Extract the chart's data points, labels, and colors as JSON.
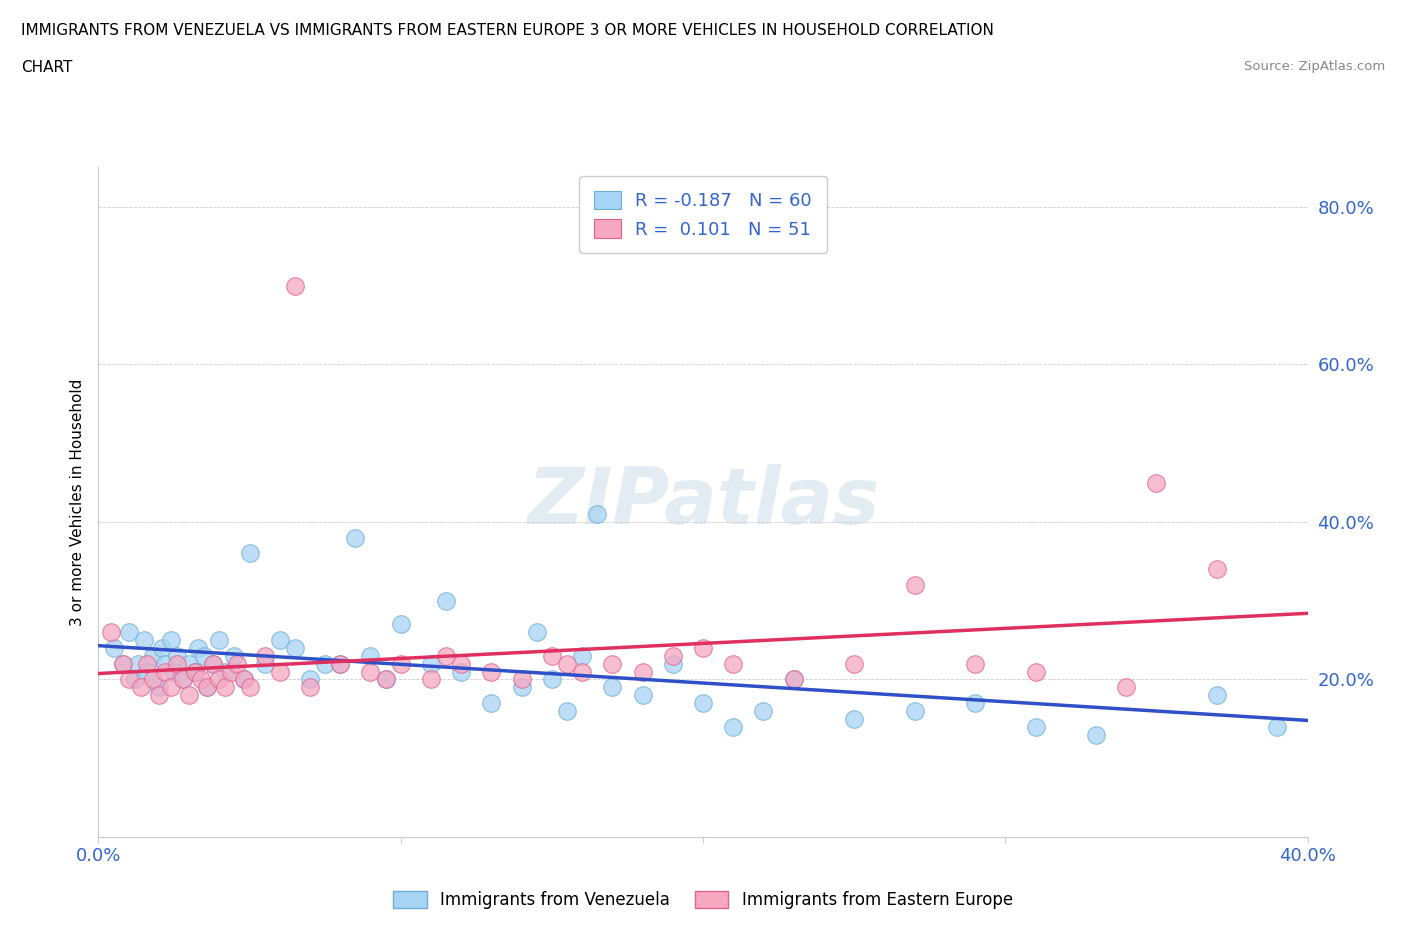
{
  "title_line1": "IMMIGRANTS FROM VENEZUELA VS IMMIGRANTS FROM EASTERN EUROPE 3 OR MORE VEHICLES IN HOUSEHOLD CORRELATION",
  "title_line2": "CHART",
  "source": "Source: ZipAtlas.com",
  "ylabel": "3 or more Vehicles in Household",
  "xlim": [
    0.0,
    0.4
  ],
  "ylim": [
    0.0,
    0.85
  ],
  "color_blue": "#a8d4f5",
  "color_pink": "#f5a8c0",
  "color_blue_edge": "#6aaed6",
  "color_pink_edge": "#e06090",
  "color_blue_line": "#3050c8",
  "color_pink_line": "#e03060",
  "watermark_color": "#d0dff0",
  "blue_points": [
    [
      0.005,
      0.24
    ],
    [
      0.008,
      0.22
    ],
    [
      0.01,
      0.26
    ],
    [
      0.012,
      0.2
    ],
    [
      0.013,
      0.22
    ],
    [
      0.015,
      0.25
    ],
    [
      0.016,
      0.21
    ],
    [
      0.018,
      0.23
    ],
    [
      0.02,
      0.19
    ],
    [
      0.021,
      0.24
    ],
    [
      0.022,
      0.22
    ],
    [
      0.024,
      0.25
    ],
    [
      0.025,
      0.21
    ],
    [
      0.026,
      0.23
    ],
    [
      0.028,
      0.2
    ],
    [
      0.03,
      0.22
    ],
    [
      0.032,
      0.21
    ],
    [
      0.033,
      0.24
    ],
    [
      0.035,
      0.23
    ],
    [
      0.036,
      0.19
    ],
    [
      0.038,
      0.22
    ],
    [
      0.04,
      0.25
    ],
    [
      0.042,
      0.21
    ],
    [
      0.045,
      0.23
    ],
    [
      0.048,
      0.2
    ],
    [
      0.05,
      0.36
    ],
    [
      0.055,
      0.22
    ],
    [
      0.06,
      0.25
    ],
    [
      0.065,
      0.24
    ],
    [
      0.07,
      0.2
    ],
    [
      0.075,
      0.22
    ],
    [
      0.08,
      0.22
    ],
    [
      0.085,
      0.38
    ],
    [
      0.09,
      0.23
    ],
    [
      0.095,
      0.2
    ],
    [
      0.1,
      0.27
    ],
    [
      0.11,
      0.22
    ],
    [
      0.115,
      0.3
    ],
    [
      0.12,
      0.21
    ],
    [
      0.13,
      0.17
    ],
    [
      0.14,
      0.19
    ],
    [
      0.145,
      0.26
    ],
    [
      0.15,
      0.2
    ],
    [
      0.155,
      0.16
    ],
    [
      0.16,
      0.23
    ],
    [
      0.165,
      0.41
    ],
    [
      0.17,
      0.19
    ],
    [
      0.18,
      0.18
    ],
    [
      0.19,
      0.22
    ],
    [
      0.2,
      0.17
    ],
    [
      0.21,
      0.14
    ],
    [
      0.22,
      0.16
    ],
    [
      0.23,
      0.2
    ],
    [
      0.25,
      0.15
    ],
    [
      0.27,
      0.16
    ],
    [
      0.29,
      0.17
    ],
    [
      0.31,
      0.14
    ],
    [
      0.33,
      0.13
    ],
    [
      0.37,
      0.18
    ],
    [
      0.39,
      0.14
    ]
  ],
  "pink_points": [
    [
      0.004,
      0.26
    ],
    [
      0.008,
      0.22
    ],
    [
      0.01,
      0.2
    ],
    [
      0.014,
      0.19
    ],
    [
      0.016,
      0.22
    ],
    [
      0.018,
      0.2
    ],
    [
      0.02,
      0.18
    ],
    [
      0.022,
      0.21
    ],
    [
      0.024,
      0.19
    ],
    [
      0.026,
      0.22
    ],
    [
      0.028,
      0.2
    ],
    [
      0.03,
      0.18
    ],
    [
      0.032,
      0.21
    ],
    [
      0.034,
      0.2
    ],
    [
      0.036,
      0.19
    ],
    [
      0.038,
      0.22
    ],
    [
      0.04,
      0.2
    ],
    [
      0.042,
      0.19
    ],
    [
      0.044,
      0.21
    ],
    [
      0.046,
      0.22
    ],
    [
      0.048,
      0.2
    ],
    [
      0.05,
      0.19
    ],
    [
      0.055,
      0.23
    ],
    [
      0.06,
      0.21
    ],
    [
      0.065,
      0.7
    ],
    [
      0.07,
      0.19
    ],
    [
      0.08,
      0.22
    ],
    [
      0.09,
      0.21
    ],
    [
      0.095,
      0.2
    ],
    [
      0.1,
      0.22
    ],
    [
      0.11,
      0.2
    ],
    [
      0.115,
      0.23
    ],
    [
      0.12,
      0.22
    ],
    [
      0.13,
      0.21
    ],
    [
      0.14,
      0.2
    ],
    [
      0.15,
      0.23
    ],
    [
      0.155,
      0.22
    ],
    [
      0.16,
      0.21
    ],
    [
      0.17,
      0.22
    ],
    [
      0.18,
      0.21
    ],
    [
      0.19,
      0.23
    ],
    [
      0.2,
      0.24
    ],
    [
      0.21,
      0.22
    ],
    [
      0.23,
      0.2
    ],
    [
      0.25,
      0.22
    ],
    [
      0.27,
      0.32
    ],
    [
      0.29,
      0.22
    ],
    [
      0.31,
      0.21
    ],
    [
      0.34,
      0.19
    ],
    [
      0.35,
      0.45
    ],
    [
      0.37,
      0.34
    ]
  ]
}
